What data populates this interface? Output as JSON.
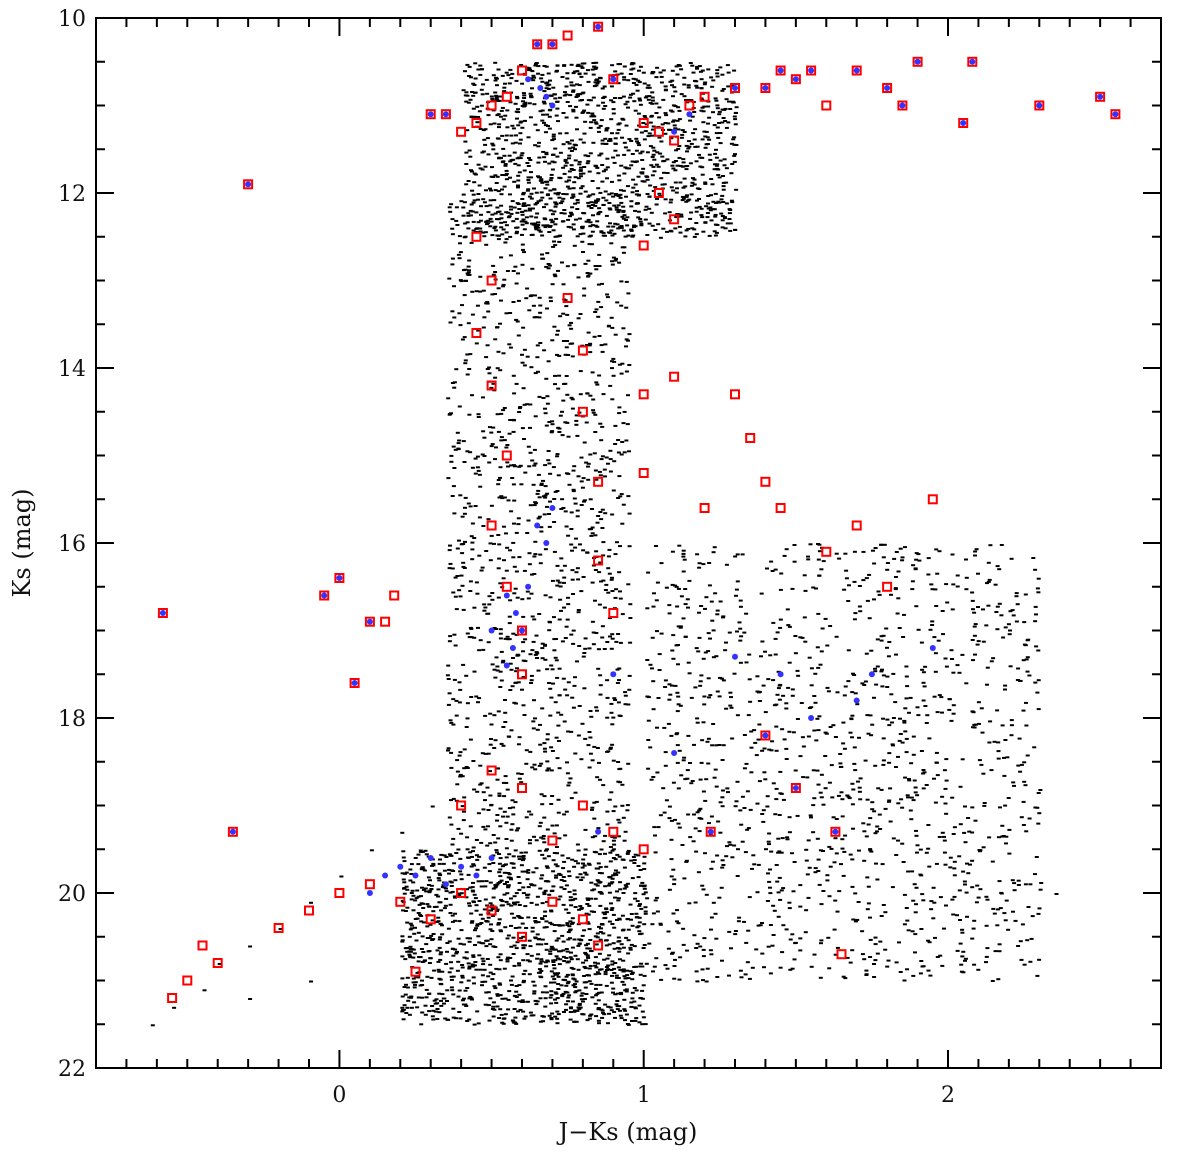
{
  "chart_data": {
    "type": "scatter",
    "title": "",
    "xlabel": "J−Ks (mag)",
    "ylabel": "Ks (mag)",
    "xlim": [
      -0.8,
      2.7
    ],
    "ylim": [
      22,
      10
    ],
    "y_inverted": true,
    "x_ticks": [
      0,
      1,
      2
    ],
    "x_tick_labels": [
      "0",
      "1",
      "2"
    ],
    "y_ticks": [
      10,
      12,
      14,
      16,
      18,
      20,
      22
    ],
    "y_tick_labels": [
      "10",
      "12",
      "14",
      "16",
      "18",
      "20",
      "22"
    ],
    "grid": false,
    "legend": "none",
    "series": [
      {
        "marker": "dot",
        "color": "#000000",
        "density_regions": [
          {
            "x": [
              0.2,
              1.0
            ],
            "y": [
              19.5,
              21.5
            ]
          },
          {
            "x": [
              0.35,
              0.95
            ],
            "y": [
              12.0,
              19.5
            ]
          },
          {
            "x": [
              1.0,
              2.3
            ],
            "y": [
              16.0,
              21.0
            ]
          },
          {
            "x": [
              0.4,
              1.3
            ],
            "y": [
              10.5,
              12.5
            ]
          }
        ],
        "values": [
          [
            -0.62,
            21.5
          ],
          [
            -0.55,
            21.3
          ],
          [
            -0.45,
            21.1
          ],
          [
            -0.4,
            20.8
          ],
          [
            -0.3,
            20.6
          ],
          [
            -0.2,
            20.4
          ],
          [
            -0.1,
            20.1
          ],
          [
            0.0,
            19.8
          ],
          [
            0.1,
            19.5
          ],
          [
            0.2,
            19.3
          ],
          [
            0.3,
            19.0
          ],
          [
            0.35,
            17.5
          ],
          [
            0.4,
            16.0
          ],
          [
            0.42,
            14.0
          ],
          [
            0.45,
            12.0
          ],
          [
            0.6,
            11.0
          ],
          [
            0.75,
            13.5
          ],
          [
            0.8,
            15.5
          ],
          [
            0.85,
            17.5
          ],
          [
            0.9,
            19.0
          ],
          [
            1.05,
            12.5
          ],
          [
            1.1,
            11.5
          ],
          [
            1.3,
            17.0
          ],
          [
            1.5,
            18.0
          ],
          [
            1.8,
            18.5
          ],
          [
            2.1,
            19.5
          ],
          [
            2.35,
            20.0
          ],
          [
            1.6,
            20.5
          ],
          [
            1.2,
            21.0
          ],
          [
            0.8,
            21.2
          ],
          [
            0.5,
            21.4
          ],
          [
            0.2,
            21.3
          ],
          [
            -0.1,
            21.0
          ],
          [
            -0.3,
            21.2
          ],
          [
            1.0,
            20.2
          ],
          [
            1.4,
            19.0
          ],
          [
            0.65,
            16.8
          ],
          [
            0.55,
            18.2
          ],
          [
            0.6,
            14.8
          ],
          [
            0.7,
            12.2
          ]
        ]
      },
      {
        "marker": "square",
        "color": "#ff0000",
        "values": [
          [
            -0.58,
            16.8
          ],
          [
            -0.3,
            11.9
          ],
          [
            -0.35,
            19.3
          ],
          [
            -0.2,
            20.4
          ],
          [
            -0.1,
            20.2
          ],
          [
            0.0,
            16.4
          ],
          [
            -0.05,
            16.6
          ],
          [
            0.05,
            17.6
          ],
          [
            0.1,
            16.9
          ],
          [
            0.15,
            16.9
          ],
          [
            0.18,
            16.6
          ],
          [
            0.3,
            11.1
          ],
          [
            0.35,
            11.1
          ],
          [
            0.4,
            11.3
          ],
          [
            0.45,
            11.2
          ],
          [
            0.5,
            11.0
          ],
          [
            0.55,
            10.9
          ],
          [
            0.6,
            10.6
          ],
          [
            0.65,
            10.3
          ],
          [
            0.7,
            10.3
          ],
          [
            0.75,
            10.2
          ],
          [
            0.85,
            10.1
          ],
          [
            0.9,
            10.7
          ],
          [
            1.0,
            11.2
          ],
          [
            1.05,
            11.3
          ],
          [
            1.1,
            11.4
          ],
          [
            1.15,
            11.0
          ],
          [
            1.2,
            10.9
          ],
          [
            1.3,
            10.8
          ],
          [
            1.4,
            10.8
          ],
          [
            1.45,
            10.6
          ],
          [
            1.5,
            10.7
          ],
          [
            1.55,
            10.6
          ],
          [
            1.6,
            11.0
          ],
          [
            1.7,
            10.6
          ],
          [
            1.8,
            10.8
          ],
          [
            1.85,
            11.0
          ],
          [
            1.9,
            10.5
          ],
          [
            2.05,
            11.2
          ],
          [
            2.08,
            10.5
          ],
          [
            2.3,
            11.0
          ],
          [
            2.5,
            10.9
          ],
          [
            2.55,
            11.1
          ],
          [
            0.45,
            12.5
          ],
          [
            0.5,
            13.0
          ],
          [
            0.45,
            13.6
          ],
          [
            0.5,
            14.2
          ],
          [
            0.55,
            15.0
          ],
          [
            0.5,
            15.8
          ],
          [
            0.55,
            16.5
          ],
          [
            0.6,
            17.0
          ],
          [
            0.6,
            17.5
          ],
          [
            0.75,
            13.2
          ],
          [
            0.8,
            13.8
          ],
          [
            0.8,
            14.5
          ],
          [
            0.85,
            15.3
          ],
          [
            0.85,
            16.2
          ],
          [
            0.9,
            16.8
          ],
          [
            1.0,
            12.6
          ],
          [
            1.05,
            12.0
          ],
          [
            1.1,
            12.3
          ],
          [
            1.0,
            14.3
          ],
          [
            1.1,
            14.1
          ],
          [
            1.3,
            14.3
          ],
          [
            1.35,
            14.8
          ],
          [
            1.4,
            15.3
          ],
          [
            1.45,
            15.6
          ],
          [
            1.6,
            16.1
          ],
          [
            1.7,
            15.8
          ],
          [
            1.8,
            16.5
          ],
          [
            1.95,
            15.5
          ],
          [
            1.2,
            15.6
          ],
          [
            1.0,
            15.2
          ],
          [
            0.4,
            19.0
          ],
          [
            0.5,
            18.6
          ],
          [
            0.6,
            18.8
          ],
          [
            0.7,
            19.4
          ],
          [
            0.8,
            19.0
          ],
          [
            0.9,
            19.3
          ],
          [
            1.0,
            19.5
          ],
          [
            0.0,
            20.0
          ],
          [
            0.1,
            19.9
          ],
          [
            0.2,
            20.1
          ],
          [
            0.3,
            20.3
          ],
          [
            0.4,
            20.0
          ],
          [
            0.5,
            20.2
          ],
          [
            0.6,
            20.5
          ],
          [
            0.7,
            20.1
          ],
          [
            0.8,
            20.3
          ],
          [
            0.85,
            20.6
          ],
          [
            -0.45,
            20.6
          ],
          [
            -0.4,
            20.8
          ],
          [
            -0.5,
            21.0
          ],
          [
            -0.55,
            21.2
          ],
          [
            0.25,
            20.9
          ],
          [
            1.65,
            20.7
          ],
          [
            1.22,
            19.3
          ],
          [
            1.63,
            19.3
          ],
          [
            1.4,
            18.2
          ],
          [
            1.5,
            18.8
          ]
        ]
      },
      {
        "marker": "filled-dot",
        "color": "#3333ff",
        "values": [
          [
            -0.58,
            16.8
          ],
          [
            -0.3,
            11.9
          ],
          [
            -0.35,
            19.3
          ],
          [
            0.0,
            16.4
          ],
          [
            -0.05,
            16.6
          ],
          [
            0.05,
            17.6
          ],
          [
            0.1,
            16.9
          ],
          [
            0.3,
            11.1
          ],
          [
            0.35,
            11.1
          ],
          [
            0.65,
            10.3
          ],
          [
            0.7,
            10.3
          ],
          [
            0.85,
            10.1
          ],
          [
            0.62,
            10.7
          ],
          [
            0.66,
            10.8
          ],
          [
            0.68,
            10.9
          ],
          [
            0.7,
            11.0
          ],
          [
            0.9,
            10.7
          ],
          [
            1.1,
            11.3
          ],
          [
            1.15,
            11.1
          ],
          [
            1.3,
            10.8
          ],
          [
            1.4,
            10.8
          ],
          [
            1.45,
            10.6
          ],
          [
            1.5,
            10.7
          ],
          [
            1.55,
            10.6
          ],
          [
            1.7,
            10.6
          ],
          [
            1.8,
            10.8
          ],
          [
            1.85,
            11.0
          ],
          [
            1.9,
            10.5
          ],
          [
            2.05,
            11.2
          ],
          [
            2.08,
            10.5
          ],
          [
            2.3,
            11.0
          ],
          [
            2.5,
            10.9
          ],
          [
            2.55,
            11.1
          ],
          [
            0.55,
            16.6
          ],
          [
            0.58,
            16.8
          ],
          [
            0.6,
            17.0
          ],
          [
            0.57,
            17.2
          ],
          [
            0.55,
            17.4
          ],
          [
            0.62,
            16.5
          ],
          [
            0.5,
            17.0
          ],
          [
            0.65,
            15.8
          ],
          [
            0.68,
            16.0
          ],
          [
            0.7,
            15.6
          ],
          [
            0.2,
            19.7
          ],
          [
            0.25,
            19.8
          ],
          [
            0.3,
            19.6
          ],
          [
            0.35,
            19.9
          ],
          [
            0.4,
            19.7
          ],
          [
            0.45,
            19.8
          ],
          [
            0.5,
            19.6
          ],
          [
            0.15,
            19.8
          ],
          [
            0.1,
            20.0
          ],
          [
            1.22,
            19.3
          ],
          [
            1.63,
            19.3
          ],
          [
            1.4,
            18.2
          ],
          [
            1.5,
            18.8
          ],
          [
            1.3,
            17.3
          ],
          [
            1.45,
            17.5
          ],
          [
            1.75,
            17.5
          ],
          [
            1.95,
            17.2
          ],
          [
            1.55,
            18.0
          ],
          [
            1.7,
            17.8
          ],
          [
            0.9,
            17.5
          ],
          [
            0.85,
            19.3
          ],
          [
            1.1,
            18.4
          ]
        ]
      }
    ]
  }
}
